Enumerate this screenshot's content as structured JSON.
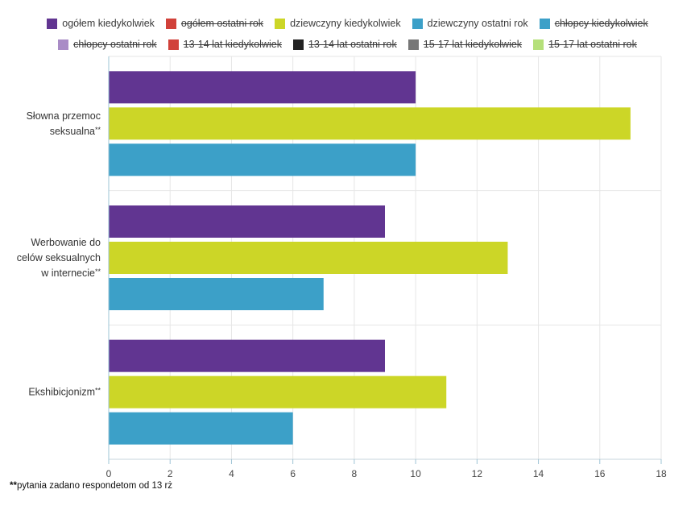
{
  "legend": {
    "rows": [
      [
        {
          "label": "ogółem kiedykolwiek",
          "color": "#613591",
          "hidden": false
        },
        {
          "label": "ogółem ostatni rok",
          "color": "#d1413a",
          "hidden": true
        },
        {
          "label": "dziewczyny kiedykolwiek",
          "color": "#ccd627",
          "hidden": false
        },
        {
          "label": "dziewczyny ostatni rok",
          "color": "#3ca0c8",
          "hidden": false
        },
        {
          "label": "chłopcy kiedykolwiek",
          "color": "#3ca0c8",
          "hidden": true
        }
      ],
      [
        {
          "label": "chłopcy ostatni rok",
          "color": "#a98cc6",
          "hidden": true
        },
        {
          "label": "13-14 lat kiedykolwiek",
          "color": "#d1413a",
          "hidden": true
        },
        {
          "label": "13-14 lat ostatni rok",
          "color": "#222222",
          "hidden": true
        },
        {
          "label": "15-17 lat kiedykolwiek",
          "color": "#777777",
          "hidden": true
        },
        {
          "label": "15-17 lat ostatni rok",
          "color": "#b5e07a",
          "hidden": true
        }
      ]
    ]
  },
  "chart_data": {
    "type": "bar",
    "orientation": "horizontal",
    "categories": [
      [
        "Słowna przemoc",
        "seksualna**"
      ],
      [
        "Werbowanie do",
        "celów seksualnych",
        "w internecie**"
      ],
      [
        "Ekshibicjonizm**"
      ]
    ],
    "series": [
      {
        "name": "ogółem kiedykolwiek",
        "color": "#613591",
        "values": [
          10,
          9,
          9
        ]
      },
      {
        "name": "dziewczyny kiedykolwiek",
        "color": "#ccd627",
        "values": [
          17,
          13,
          11
        ]
      },
      {
        "name": "dziewczyny ostatni rok",
        "color": "#3ca0c8",
        "values": [
          10,
          7,
          6
        ]
      }
    ],
    "xlim": [
      0,
      18
    ],
    "xticks": [
      "0",
      "2",
      "4",
      "6",
      "8",
      "10",
      "12",
      "14",
      "16",
      "18"
    ],
    "grid": true,
    "legend_position": "top"
  },
  "footnote": {
    "stars": "**",
    "text": "pytania zadano respondetom od 13 rż"
  }
}
